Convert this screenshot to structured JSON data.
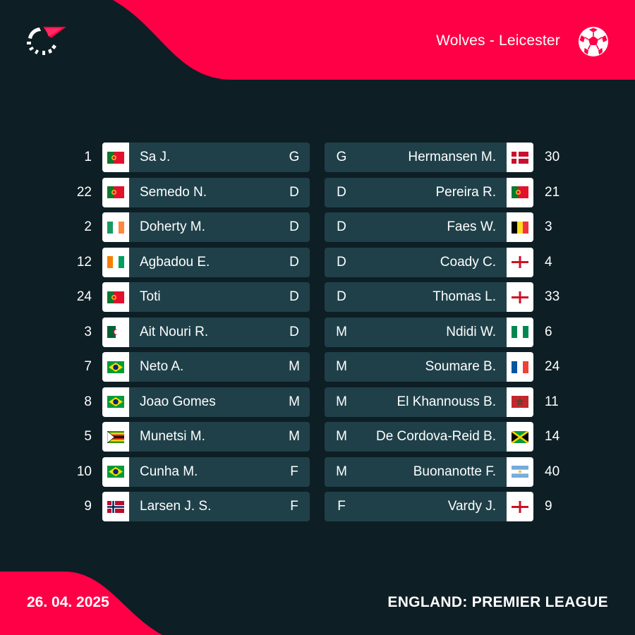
{
  "header": {
    "match_title": "Wolves - Leicester",
    "accent_color": "#ff0046",
    "logo_icon": "flashscore-logo-icon",
    "ball_icon": "football-icon"
  },
  "footer": {
    "date": "26. 04. 2025",
    "league": "ENGLAND: PREMIER LEAGUE"
  },
  "lineups": {
    "home": [
      {
        "number": "1",
        "name": "Sa J.",
        "position": "G",
        "flag": "portugal"
      },
      {
        "number": "22",
        "name": "Semedo N.",
        "position": "D",
        "flag": "portugal"
      },
      {
        "number": "2",
        "name": "Doherty M.",
        "position": "D",
        "flag": "ireland"
      },
      {
        "number": "12",
        "name": "Agbadou E.",
        "position": "D",
        "flag": "ivory-coast"
      },
      {
        "number": "24",
        "name": "Toti",
        "position": "D",
        "flag": "portugal"
      },
      {
        "number": "3",
        "name": "Ait Nouri R.",
        "position": "D",
        "flag": "algeria"
      },
      {
        "number": "7",
        "name": "Neto A.",
        "position": "M",
        "flag": "brazil"
      },
      {
        "number": "8",
        "name": "Joao Gomes",
        "position": "M",
        "flag": "brazil"
      },
      {
        "number": "5",
        "name": "Munetsi M.",
        "position": "M",
        "flag": "zimbabwe"
      },
      {
        "number": "10",
        "name": "Cunha M.",
        "position": "F",
        "flag": "brazil"
      },
      {
        "number": "9",
        "name": "Larsen J. S.",
        "position": "F",
        "flag": "norway"
      }
    ],
    "away": [
      {
        "number": "30",
        "name": "Hermansen M.",
        "position": "G",
        "flag": "denmark"
      },
      {
        "number": "21",
        "name": "Pereira R.",
        "position": "D",
        "flag": "portugal"
      },
      {
        "number": "3",
        "name": "Faes W.",
        "position": "D",
        "flag": "belgium"
      },
      {
        "number": "4",
        "name": "Coady C.",
        "position": "D",
        "flag": "england"
      },
      {
        "number": "33",
        "name": "Thomas L.",
        "position": "D",
        "flag": "england"
      },
      {
        "number": "6",
        "name": "Ndidi W.",
        "position": "M",
        "flag": "nigeria"
      },
      {
        "number": "24",
        "name": "Soumare B.",
        "position": "M",
        "flag": "france"
      },
      {
        "number": "11",
        "name": "El Khannouss B.",
        "position": "M",
        "flag": "morocco"
      },
      {
        "number": "14",
        "name": "De Cordova-Reid B.",
        "position": "M",
        "flag": "jamaica"
      },
      {
        "number": "40",
        "name": "Buonanotte F.",
        "position": "M",
        "flag": "argentina"
      },
      {
        "number": "9",
        "name": "Vardy J.",
        "position": "F",
        "flag": "england"
      }
    ]
  }
}
